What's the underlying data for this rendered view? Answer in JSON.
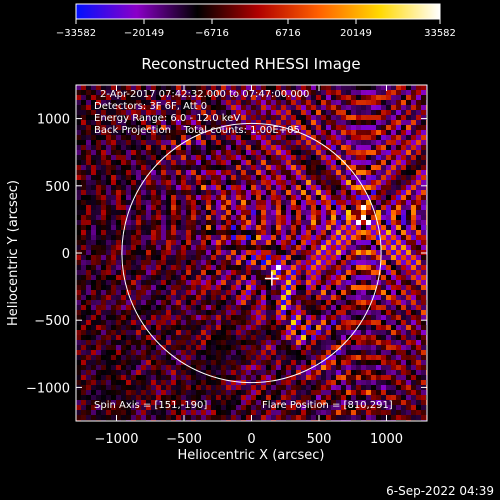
{
  "chart_data": {
    "type": "heatmap",
    "title": "Reconstructed RHESSI Image",
    "xlabel": "Heliocentric X (arcsec)",
    "ylabel": "Heliocentric Y (arcsec)",
    "xlim": [
      -1300,
      1300
    ],
    "ylim": [
      -1250,
      1250
    ],
    "x_ticks": [
      -1000,
      -500,
      0,
      500,
      1000
    ],
    "y_ticks": [
      -1000,
      -500,
      0,
      500,
      1000
    ],
    "colorbar": {
      "range": [
        -33582,
        33582
      ],
      "tick_labels": [
        "−33582",
        "−20149",
        "−6716",
        "6716",
        "20149",
        "33582"
      ],
      "colors": [
        "#0010ff",
        "#8b00c8",
        "#000000",
        "#b00000",
        "#ff6000",
        "#ffd800",
        "#ffffff"
      ]
    },
    "info_lines": [
      "2-Apr-2017 07:42:32.000 to 07:47:00.000",
      "Detectors: 3F 6F, Att 0",
      "Energy Range: 6.0 - 12.0 keV",
      "Back Projection    Total counts: 1.00E+05"
    ],
    "spin_axis_label": "Spin Axis = [151,-190]",
    "flare_position_label": "Flare Position = [810,291]",
    "limb_radius_arcsec": 960,
    "spin_axis": [
      151,
      -190
    ],
    "flare_position": [
      810,
      291
    ]
  },
  "footer_timestamp": "6-Sep-2022 04:39"
}
